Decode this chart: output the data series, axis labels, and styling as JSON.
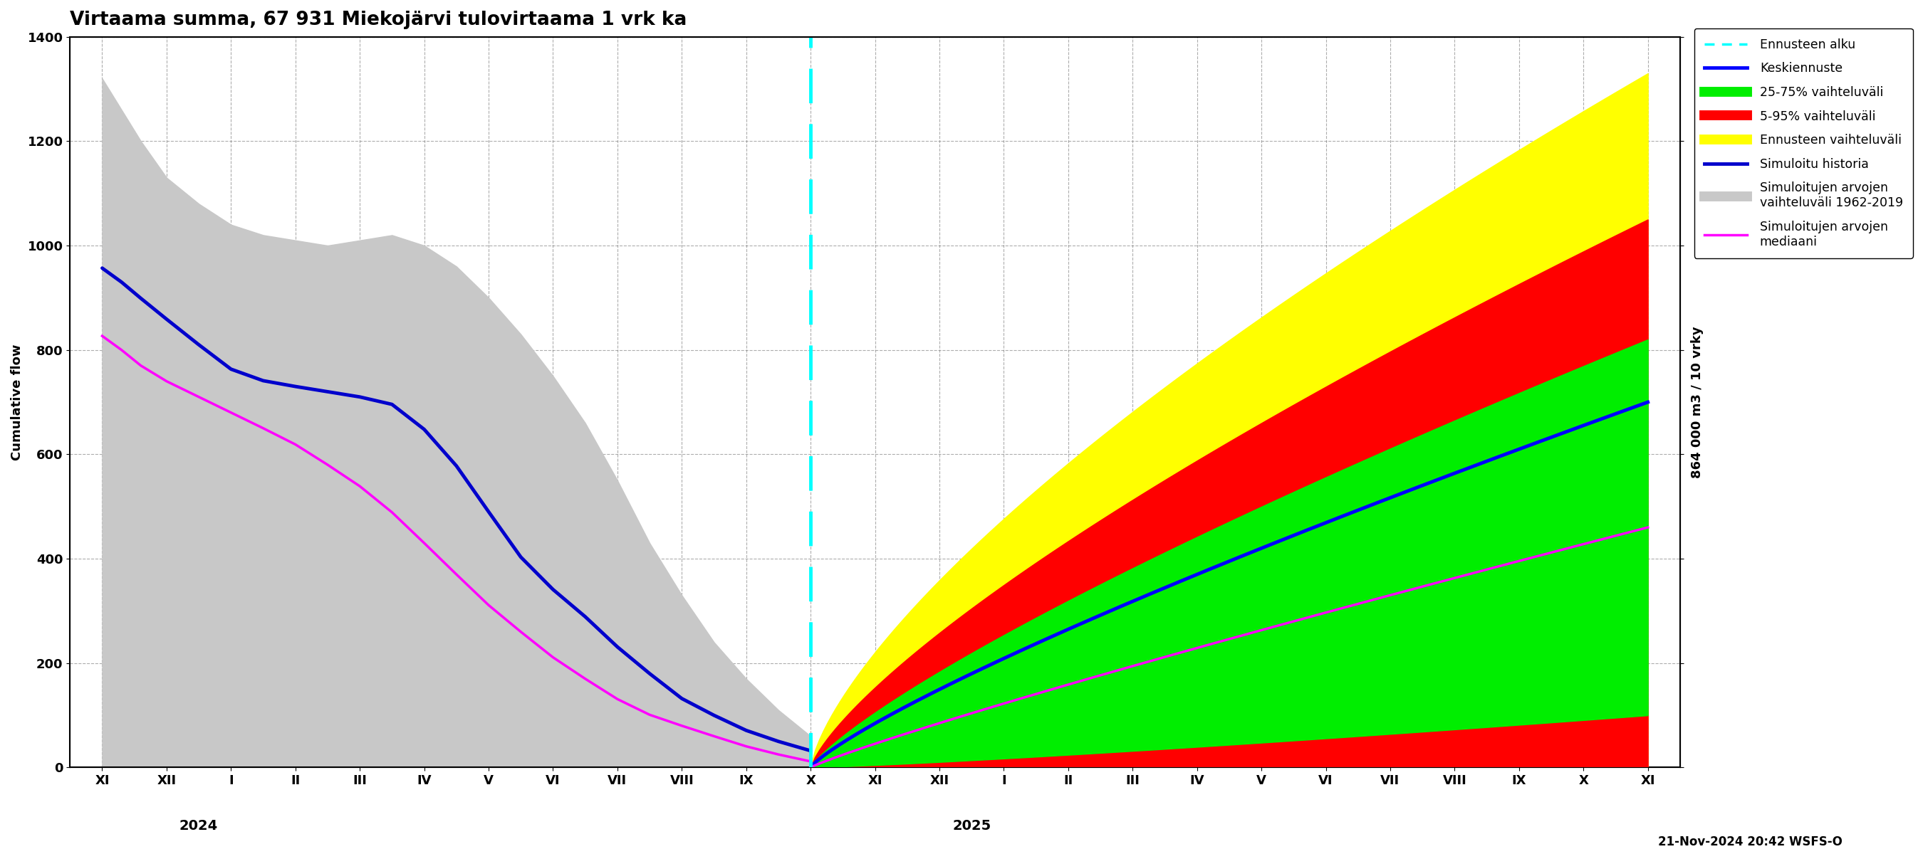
{
  "title": "Virtaama summa, 67 931 Miekojärvi tulovirtaama 1 vrk ka",
  "ylabel_left": "Cumulative flow",
  "ylabel_right": "864 000 m3 / 10 vrky",
  "ylim": [
    0,
    1400
  ],
  "yticks": [
    0,
    200,
    400,
    600,
    800,
    1000,
    1200,
    1400
  ],
  "footer": "21-Nov-2024 20:42 WSFS-O",
  "forecast_start_x": 11.0,
  "background_color": "#ffffff",
  "grid_color": "#777777",
  "title_fontsize": 19,
  "axis_fontsize": 13,
  "month_labels": [
    "XI",
    "XII",
    "I",
    "II",
    "III",
    "IV",
    "V",
    "VI",
    "VII",
    "VIII",
    "IX",
    "X",
    "XI",
    "XII",
    "I",
    "II",
    "III",
    "IV",
    "V",
    "VI",
    "VII",
    "VIII",
    "IX",
    "X",
    "XI"
  ],
  "month_positions": [
    0,
    1,
    2,
    3,
    4,
    5,
    6,
    7,
    8,
    9,
    10,
    11,
    12,
    13,
    14,
    15,
    16,
    17,
    18,
    19,
    20,
    21,
    22,
    23,
    24
  ],
  "year_labels": [
    [
      "2024",
      1.5
    ],
    [
      "2025",
      13.5
    ]
  ],
  "xmin": -0.5,
  "xmax": 24.5
}
